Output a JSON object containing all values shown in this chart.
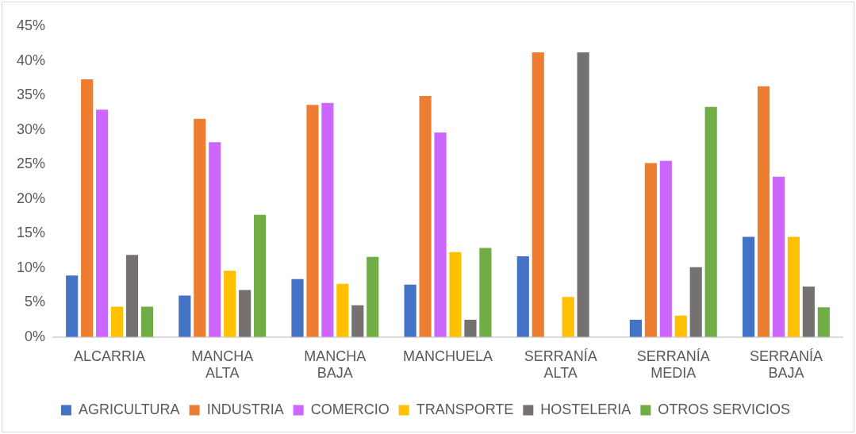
{
  "chart_data": {
    "type": "bar",
    "categories": [
      "ALCARRIA",
      "MANCHA ALTA",
      "MANCHA BAJA",
      "MANCHUELA",
      "SERRANÍA ALTA",
      "SERRANÍA MEDIA",
      "SERRANÍA BAJA"
    ],
    "series": [
      {
        "name": "AGRICULTURA",
        "color": "#4472c4",
        "values": [
          8.9,
          6.0,
          8.4,
          7.6,
          11.7,
          2.5,
          14.5
        ]
      },
      {
        "name": "INDUSTRIA",
        "color": "#ed7d31",
        "values": [
          37.3,
          31.6,
          33.6,
          34.9,
          41.2,
          25.2,
          36.3
        ]
      },
      {
        "name": "COMERCIO",
        "color": "#cc66ff",
        "values": [
          32.9,
          28.2,
          33.9,
          29.6,
          0,
          25.5,
          23.2
        ]
      },
      {
        "name": "TRANSPORTE",
        "color": "#ffc000",
        "values": [
          4.4,
          9.6,
          7.7,
          12.3,
          5.8,
          3.1,
          14.5
        ]
      },
      {
        "name": "HOSTELERIA",
        "color": "#767171",
        "values": [
          11.9,
          6.8,
          4.6,
          2.5,
          41.2,
          10.1,
          7.3
        ]
      },
      {
        "name": "OTROS SERVICIOS",
        "color": "#70ad47",
        "values": [
          4.4,
          17.7,
          11.6,
          12.9,
          0,
          33.3,
          4.3
        ]
      }
    ],
    "ylim": [
      0,
      45
    ],
    "yticks": [
      {
        "value": 0,
        "label": "0%"
      },
      {
        "value": 5,
        "label": "5%"
      },
      {
        "value": 10,
        "label": "10%"
      },
      {
        "value": 15,
        "label": "15%"
      },
      {
        "value": 20,
        "label": "20%"
      },
      {
        "value": 25,
        "label": "25%"
      },
      {
        "value": 30,
        "label": "30%"
      },
      {
        "value": 35,
        "label": "35%"
      },
      {
        "value": 40,
        "label": "40%"
      },
      {
        "value": 45,
        "label": "45%"
      }
    ],
    "grid": false,
    "legend": "bottom"
  }
}
